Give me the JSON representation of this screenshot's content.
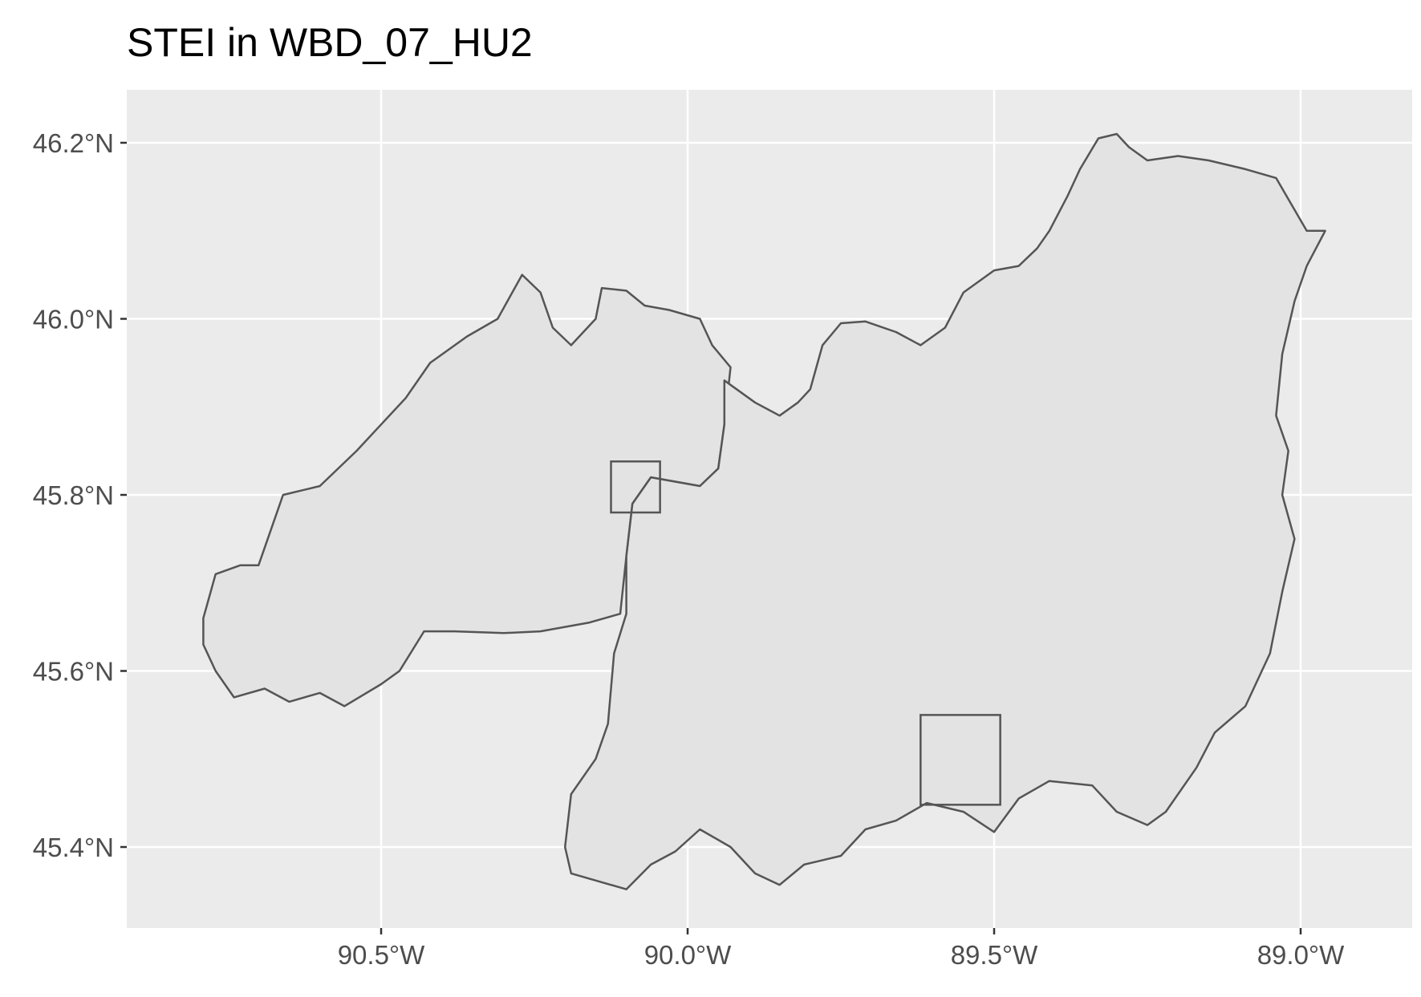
{
  "title": "STEI in WBD_07_HU2",
  "map": {
    "panel_background": "#ebebeb",
    "grid_color": "#ffffff",
    "polygon_fill": "#e3e3e3",
    "polygon_stroke": "#555555",
    "box_stroke": "#555555",
    "x_ticks": [
      {
        "value": -90.5,
        "label": "90.5°W"
      },
      {
        "value": -90.0,
        "label": "90.0°W"
      },
      {
        "value": -89.5,
        "label": "89.5°W"
      },
      {
        "value": -89.0,
        "label": "89.0°W"
      }
    ],
    "y_ticks": [
      {
        "value": 46.2,
        "label": "46.2°N"
      },
      {
        "value": 46.0,
        "label": "46.0°N"
      },
      {
        "value": 45.8,
        "label": "45.8°N"
      },
      {
        "value": 45.6,
        "label": "45.6°N"
      },
      {
        "value": 45.4,
        "label": "45.4°N"
      }
    ],
    "watershed_west": [
      [
        -90.79,
        45.63
      ],
      [
        -90.77,
        45.6
      ],
      [
        -90.74,
        45.57
      ],
      [
        -90.69,
        45.58
      ],
      [
        -90.65,
        45.565
      ],
      [
        -90.6,
        45.575
      ],
      [
        -90.56,
        45.56
      ],
      [
        -90.5,
        45.585
      ],
      [
        -90.47,
        45.6
      ],
      [
        -90.43,
        45.645
      ],
      [
        -90.38,
        45.645
      ],
      [
        -90.3,
        45.643
      ],
      [
        -90.24,
        45.645
      ],
      [
        -90.16,
        45.655
      ],
      [
        -90.11,
        45.665
      ],
      [
        -90.1,
        45.73
      ],
      [
        -90.09,
        45.79
      ],
      [
        -90.06,
        45.82
      ],
      [
        -89.98,
        45.81
      ],
      [
        -89.95,
        45.83
      ],
      [
        -89.94,
        45.88
      ],
      [
        -89.93,
        45.945
      ],
      [
        -89.96,
        45.97
      ],
      [
        -89.98,
        46.0
      ],
      [
        -90.03,
        46.01
      ],
      [
        -90.07,
        46.015
      ],
      [
        -90.1,
        46.032
      ],
      [
        -90.14,
        46.035
      ],
      [
        -90.15,
        46.0
      ],
      [
        -90.19,
        45.97
      ],
      [
        -90.22,
        45.99
      ],
      [
        -90.24,
        46.03
      ],
      [
        -90.27,
        46.05
      ],
      [
        -90.31,
        46.0
      ],
      [
        -90.36,
        45.98
      ],
      [
        -90.42,
        45.95
      ],
      [
        -90.46,
        45.91
      ],
      [
        -90.5,
        45.88
      ],
      [
        -90.54,
        45.85
      ],
      [
        -90.6,
        45.81
      ],
      [
        -90.66,
        45.8
      ],
      [
        -90.7,
        45.72
      ],
      [
        -90.73,
        45.72
      ],
      [
        -90.77,
        45.71
      ],
      [
        -90.79,
        45.66
      ]
    ],
    "watershed_east": [
      [
        -90.1,
        45.665
      ],
      [
        -90.12,
        45.62
      ],
      [
        -90.13,
        45.54
      ],
      [
        -90.15,
        45.5
      ],
      [
        -90.19,
        45.46
      ],
      [
        -90.2,
        45.4
      ],
      [
        -90.19,
        45.37
      ],
      [
        -90.14,
        45.36
      ],
      [
        -90.1,
        45.352
      ],
      [
        -90.06,
        45.38
      ],
      [
        -90.02,
        45.395
      ],
      [
        -89.98,
        45.42
      ],
      [
        -89.93,
        45.4
      ],
      [
        -89.89,
        45.37
      ],
      [
        -89.85,
        45.357
      ],
      [
        -89.81,
        45.38
      ],
      [
        -89.75,
        45.39
      ],
      [
        -89.71,
        45.42
      ],
      [
        -89.66,
        45.43
      ],
      [
        -89.61,
        45.45
      ],
      [
        -89.55,
        45.44
      ],
      [
        -89.5,
        45.417
      ],
      [
        -89.46,
        45.455
      ],
      [
        -89.41,
        45.475
      ],
      [
        -89.34,
        45.47
      ],
      [
        -89.3,
        45.44
      ],
      [
        -89.25,
        45.425
      ],
      [
        -89.22,
        45.44
      ],
      [
        -89.17,
        45.49
      ],
      [
        -89.14,
        45.53
      ],
      [
        -89.09,
        45.56
      ],
      [
        -89.05,
        45.62
      ],
      [
        -89.03,
        45.69
      ],
      [
        -89.01,
        45.75
      ],
      [
        -89.03,
        45.8
      ],
      [
        -89.02,
        45.85
      ],
      [
        -89.04,
        45.89
      ],
      [
        -89.03,
        45.96
      ],
      [
        -89.01,
        46.02
      ],
      [
        -88.99,
        46.06
      ],
      [
        -88.96,
        46.1
      ],
      [
        -88.99,
        46.1
      ],
      [
        -89.04,
        46.16
      ],
      [
        -89.09,
        46.17
      ],
      [
        -89.15,
        46.18
      ],
      [
        -89.2,
        46.185
      ],
      [
        -89.25,
        46.18
      ],
      [
        -89.28,
        46.195
      ],
      [
        -89.3,
        46.21
      ],
      [
        -89.33,
        46.205
      ],
      [
        -89.36,
        46.17
      ],
      [
        -89.38,
        46.14
      ],
      [
        -89.41,
        46.1
      ],
      [
        -89.43,
        46.08
      ],
      [
        -89.46,
        46.06
      ],
      [
        -89.5,
        46.055
      ],
      [
        -89.55,
        46.03
      ],
      [
        -89.58,
        45.99
      ],
      [
        -89.62,
        45.97
      ],
      [
        -89.66,
        45.985
      ],
      [
        -89.71,
        45.997
      ],
      [
        -89.75,
        45.995
      ],
      [
        -89.78,
        45.97
      ],
      [
        -89.8,
        45.92
      ],
      [
        -89.82,
        45.905
      ],
      [
        -89.85,
        45.89
      ],
      [
        -89.89,
        45.905
      ],
      [
        -89.94,
        45.93
      ],
      [
        -89.94,
        45.88
      ],
      [
        -89.95,
        45.83
      ],
      [
        -89.98,
        45.81
      ],
      [
        -90.06,
        45.82
      ],
      [
        -90.09,
        45.79
      ],
      [
        -90.1,
        45.73
      ]
    ],
    "boxes": [
      {
        "lon_min": -90.125,
        "lon_max": -90.045,
        "lat_min": 45.78,
        "lat_max": 45.838
      },
      {
        "lon_min": -89.62,
        "lon_max": -89.49,
        "lat_min": 45.448,
        "lat_max": 45.55
      }
    ]
  }
}
